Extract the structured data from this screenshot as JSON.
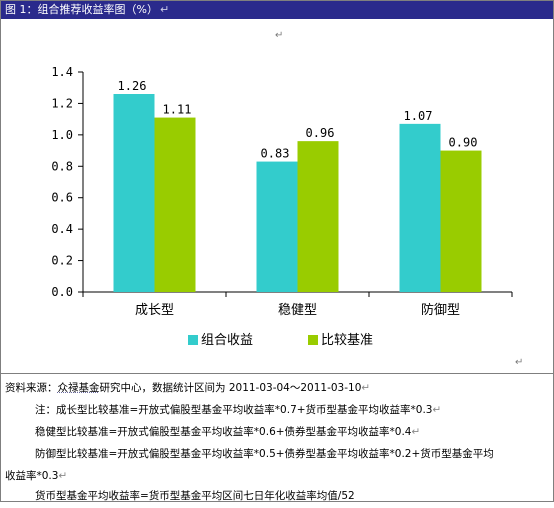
{
  "header": {
    "title": "图 1：组合推荐收益率图（%）"
  },
  "chart_data": {
    "type": "bar",
    "categories": [
      "成长型",
      "稳健型",
      "防御型"
    ],
    "series": [
      {
        "name": "组合收益",
        "values": [
          1.26,
          0.83,
          1.07
        ],
        "labels": [
          "1.26",
          "0.83",
          "1.07"
        ],
        "color": "#33cccc"
      },
      {
        "name": "比较基准",
        "values": [
          1.11,
          0.96,
          0.9
        ],
        "labels": [
          "1.11",
          "0.96",
          "0.90"
        ],
        "color": "#99cc00"
      }
    ],
    "ylim": [
      0,
      1.4
    ],
    "yticks": [
      "0.0",
      "0.2",
      "0.4",
      "0.6",
      "0.8",
      "1.0",
      "1.2",
      "1.4"
    ],
    "title": "",
    "xlabel": "",
    "ylabel": "",
    "grid": false,
    "legend": "bottom-center"
  },
  "notes": {
    "source_label": "资料来源：",
    "source_org": "众禄基金",
    "source_text": "研究中心，数据统计区间为 2011-03-04～2011-03-10",
    "note1": "注：成长型比较基准=开放式偏股型基金平均收益率*0.7+货币型基金平均收益率*0.3",
    "note2": "稳健型比较基准=开放式偏股型基金平均收益率*0.6+债券型基金平均收益率*0.4",
    "note3a": "防御型比较基准=开放式偏股型基金平均收益率*0.5+债券型基金平均收益率*0.2+货币型基金平均",
    "note3b": "收益率*0.3",
    "note4": "货币型基金平均收益率=货币型基金平均区间七日年化收益率均值/52"
  }
}
